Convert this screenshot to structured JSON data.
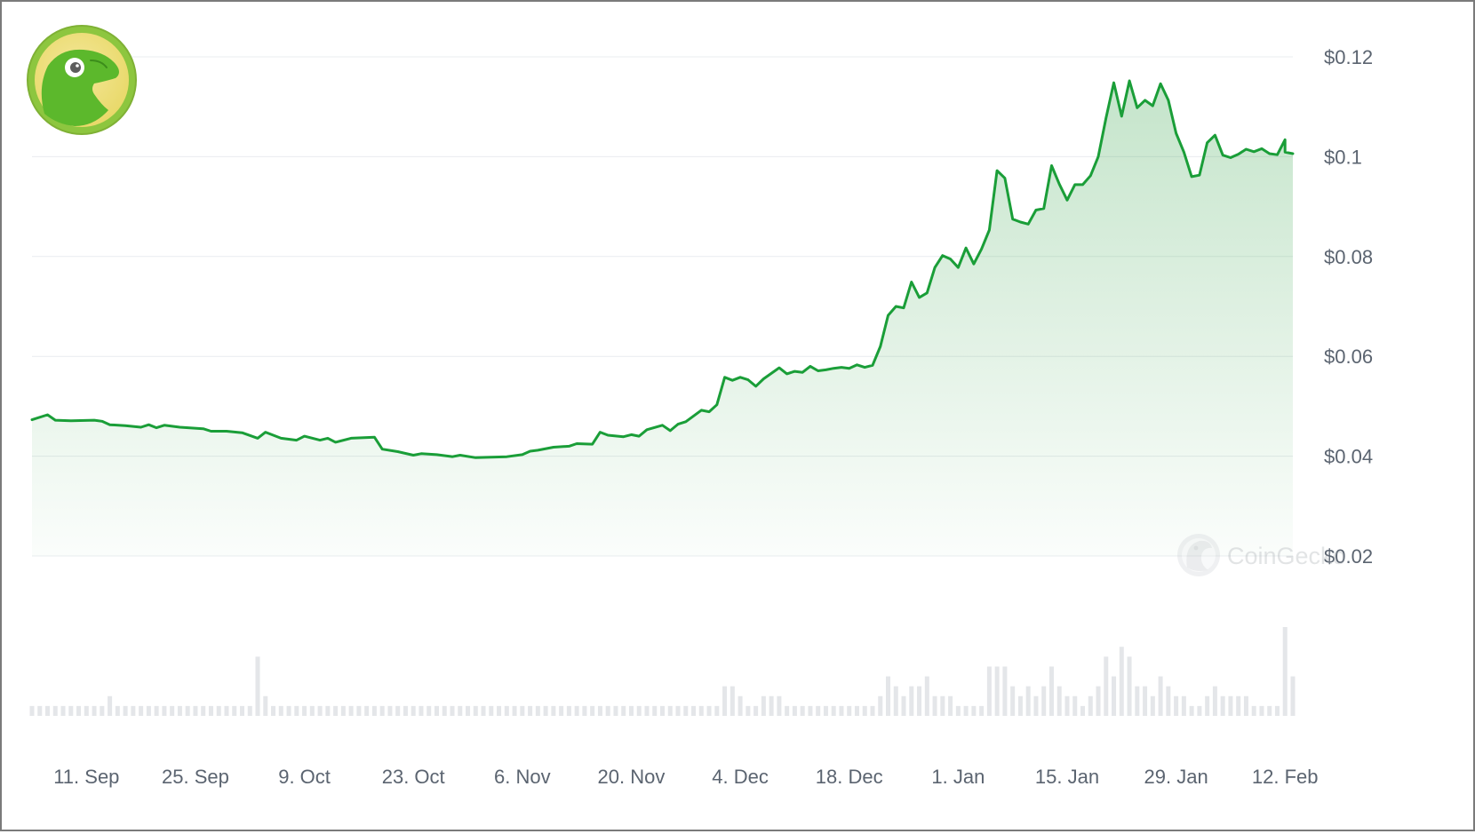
{
  "watermark": "CoinGecko",
  "colors": {
    "line": "#1a9e38",
    "fill": "#2ea043",
    "grid": "#e9ecef",
    "volume": "#e4e6e9",
    "axis_text": "#5b6470"
  },
  "icons": {
    "logo": "coingecko-gecko-logo",
    "watermark": "coingecko-watermark-icon"
  },
  "chart_data": {
    "type": "area",
    "x_ticks": [
      "11. Sep",
      "25. Sep",
      "9. Oct",
      "23. Oct",
      "6. Nov",
      "20. Nov",
      "4. Dec",
      "18. Dec",
      "1. Jan",
      "15. Jan",
      "29. Jan",
      "12. Feb"
    ],
    "y_ticks": [
      "$0.12",
      "$0.1",
      "$0.08",
      "$0.06",
      "$0.04",
      "$0.02"
    ],
    "ylim": [
      0.02,
      0.12
    ],
    "xlim": [
      "2023-09-04",
      "2024-02-13"
    ],
    "grid": true,
    "series": [
      {
        "values": [
          [
            "2023-09-04",
            0.0473
          ],
          [
            "2023-09-06",
            0.0483
          ],
          [
            "2023-09-07",
            0.0472
          ],
          [
            "2023-09-09",
            0.0471
          ],
          [
            "2023-09-12",
            0.0472
          ],
          [
            "2023-09-13",
            0.047
          ],
          [
            "2023-09-14",
            0.0463
          ],
          [
            "2023-09-16",
            0.0461
          ],
          [
            "2023-09-18",
            0.0458
          ],
          [
            "2023-09-19",
            0.0463
          ],
          [
            "2023-09-20",
            0.0457
          ],
          [
            "2023-09-21",
            0.0462
          ],
          [
            "2023-09-23",
            0.0458
          ],
          [
            "2023-09-26",
            0.0455
          ],
          [
            "2023-09-27",
            0.045
          ],
          [
            "2023-09-29",
            0.045
          ],
          [
            "2023-10-01",
            0.0447
          ],
          [
            "2023-10-03",
            0.0436
          ],
          [
            "2023-10-04",
            0.0448
          ],
          [
            "2023-10-06",
            0.0436
          ],
          [
            "2023-10-08",
            0.0432
          ],
          [
            "2023-10-09",
            0.044
          ],
          [
            "2023-10-11",
            0.0432
          ],
          [
            "2023-10-12",
            0.0436
          ],
          [
            "2023-10-13",
            0.0428
          ],
          [
            "2023-10-15",
            0.0436
          ],
          [
            "2023-10-18",
            0.0438
          ],
          [
            "2023-10-19",
            0.0414
          ],
          [
            "2023-10-21",
            0.0409
          ],
          [
            "2023-10-23",
            0.0402
          ],
          [
            "2023-10-24",
            0.0405
          ],
          [
            "2023-10-26",
            0.0403
          ],
          [
            "2023-10-28",
            0.0399
          ],
          [
            "2023-10-29",
            0.0402
          ],
          [
            "2023-10-31",
            0.0397
          ],
          [
            "2023-11-02",
            0.0398
          ],
          [
            "2023-11-04",
            0.0399
          ],
          [
            "2023-11-06",
            0.0403
          ],
          [
            "2023-11-07",
            0.041
          ],
          [
            "2023-11-08",
            0.0412
          ],
          [
            "2023-11-10",
            0.0418
          ],
          [
            "2023-11-12",
            0.042
          ],
          [
            "2023-11-13",
            0.0425
          ],
          [
            "2023-11-15",
            0.0424
          ],
          [
            "2023-11-16",
            0.0448
          ],
          [
            "2023-11-17",
            0.0442
          ],
          [
            "2023-11-19",
            0.0439
          ],
          [
            "2023-11-20",
            0.0443
          ],
          [
            "2023-11-21",
            0.044
          ],
          [
            "2023-11-22",
            0.0453
          ],
          [
            "2023-11-24",
            0.0462
          ],
          [
            "2023-11-25",
            0.0451
          ],
          [
            "2023-11-26",
            0.0464
          ],
          [
            "2023-11-27",
            0.0469
          ],
          [
            "2023-11-29",
            0.0492
          ],
          [
            "2023-11-30",
            0.0489
          ],
          [
            "2023-12-01",
            0.0503
          ],
          [
            "2023-12-02",
            0.0558
          ],
          [
            "2023-12-03",
            0.0552
          ],
          [
            "2023-12-04",
            0.0558
          ],
          [
            "2023-12-05",
            0.0553
          ],
          [
            "2023-12-06",
            0.054
          ],
          [
            "2023-12-07",
            0.0555
          ],
          [
            "2023-12-09",
            0.0577
          ],
          [
            "2023-12-10",
            0.0565
          ],
          [
            "2023-12-11",
            0.057
          ],
          [
            "2023-12-12",
            0.0568
          ],
          [
            "2023-12-13",
            0.058
          ],
          [
            "2023-12-14",
            0.0571
          ],
          [
            "2023-12-15",
            0.0573
          ],
          [
            "2023-12-16",
            0.0576
          ],
          [
            "2023-12-17",
            0.0578
          ],
          [
            "2023-12-18",
            0.0576
          ],
          [
            "2023-12-19",
            0.0583
          ],
          [
            "2023-12-20",
            0.0578
          ],
          [
            "2023-12-21",
            0.0582
          ],
          [
            "2023-12-22",
            0.062
          ],
          [
            "2023-12-23",
            0.0682
          ],
          [
            "2023-12-24",
            0.07
          ],
          [
            "2023-12-25",
            0.0697
          ],
          [
            "2023-12-26",
            0.0749
          ],
          [
            "2023-12-27",
            0.0718
          ],
          [
            "2023-12-28",
            0.0727
          ],
          [
            "2023-12-29",
            0.0778
          ],
          [
            "2023-12-30",
            0.0802
          ],
          [
            "2023-12-31",
            0.0795
          ],
          [
            "2024-01-01",
            0.0778
          ],
          [
            "2024-01-02",
            0.0817
          ],
          [
            "2024-01-03",
            0.0785
          ],
          [
            "2024-01-04",
            0.0815
          ],
          [
            "2024-01-05",
            0.0853
          ],
          [
            "2024-01-06",
            0.0972
          ],
          [
            "2024-01-07",
            0.0957
          ],
          [
            "2024-01-08",
            0.0875
          ],
          [
            "2024-01-09",
            0.0869
          ],
          [
            "2024-01-10",
            0.0865
          ],
          [
            "2024-01-11",
            0.0893
          ],
          [
            "2024-01-12",
            0.0896
          ],
          [
            "2024-01-13",
            0.0982
          ],
          [
            "2024-01-14",
            0.0945
          ],
          [
            "2024-01-15",
            0.0913
          ],
          [
            "2024-01-16",
            0.0944
          ],
          [
            "2024-01-17",
            0.0944
          ],
          [
            "2024-01-18",
            0.0962
          ],
          [
            "2024-01-19",
            0.1
          ],
          [
            "2024-01-20",
            0.1078
          ],
          [
            "2024-01-21",
            0.1148
          ],
          [
            "2024-01-22",
            0.1081
          ],
          [
            "2024-01-23",
            0.1152
          ],
          [
            "2024-01-24",
            0.1098
          ],
          [
            "2024-01-25",
            0.1113
          ],
          [
            "2024-01-26",
            0.1102
          ],
          [
            "2024-01-27",
            0.1146
          ],
          [
            "2024-01-28",
            0.1113
          ],
          [
            "2024-01-29",
            0.1047
          ],
          [
            "2024-01-30",
            0.1009
          ],
          [
            "2024-01-31",
            0.096
          ],
          [
            "2024-02-01",
            0.0963
          ],
          [
            "2024-02-02",
            0.1028
          ],
          [
            "2024-02-03",
            0.1043
          ],
          [
            "2024-02-04",
            0.1003
          ],
          [
            "2024-02-05",
            0.0998
          ],
          [
            "2024-02-06",
            0.1005
          ],
          [
            "2024-02-07",
            0.1015
          ],
          [
            "2024-02-08",
            0.101
          ],
          [
            "2024-02-09",
            0.1016
          ],
          [
            "2024-02-10",
            0.1006
          ],
          [
            "2024-02-11",
            0.1004
          ],
          [
            "2024-02-12",
            0.1034
          ],
          [
            "2024-02-12",
            0.1009
          ],
          [
            "2024-02-13",
            0.1006
          ]
        ]
      }
    ],
    "volume": [
      [
        "2023-09-04",
        1
      ],
      [
        "2023-09-05",
        1
      ],
      [
        "2023-09-06",
        1
      ],
      [
        "2023-09-07",
        1
      ],
      [
        "2023-09-08",
        1
      ],
      [
        "2023-09-09",
        1
      ],
      [
        "2023-09-10",
        1
      ],
      [
        "2023-09-11",
        1
      ],
      [
        "2023-09-12",
        1
      ],
      [
        "2023-09-13",
        1
      ],
      [
        "2023-09-14",
        2
      ],
      [
        "2023-09-15",
        1
      ],
      [
        "2023-09-16",
        1
      ],
      [
        "2023-09-17",
        1
      ],
      [
        "2023-09-18",
        1
      ],
      [
        "2023-09-19",
        1
      ],
      [
        "2023-09-20",
        1
      ],
      [
        "2023-09-21",
        1
      ],
      [
        "2023-09-22",
        1
      ],
      [
        "2023-09-23",
        1
      ],
      [
        "2023-09-24",
        1
      ],
      [
        "2023-09-25",
        1
      ],
      [
        "2023-09-26",
        1
      ],
      [
        "2023-09-27",
        1
      ],
      [
        "2023-09-28",
        1
      ],
      [
        "2023-09-29",
        1
      ],
      [
        "2023-09-30",
        1
      ],
      [
        "2023-10-01",
        1
      ],
      [
        "2023-10-02",
        1
      ],
      [
        "2023-10-03",
        6
      ],
      [
        "2023-10-04",
        2
      ],
      [
        "2023-10-05",
        1
      ],
      [
        "2023-10-06",
        1
      ],
      [
        "2023-10-07",
        1
      ],
      [
        "2023-10-08",
        1
      ],
      [
        "2023-10-09",
        1
      ],
      [
        "2023-10-10",
        1
      ],
      [
        "2023-10-11",
        1
      ],
      [
        "2023-10-12",
        1
      ],
      [
        "2023-10-13",
        1
      ],
      [
        "2023-10-14",
        1
      ],
      [
        "2023-10-15",
        1
      ],
      [
        "2023-10-16",
        1
      ],
      [
        "2023-10-17",
        1
      ],
      [
        "2023-10-18",
        1
      ],
      [
        "2023-10-19",
        1
      ],
      [
        "2023-10-20",
        1
      ],
      [
        "2023-10-21",
        1
      ],
      [
        "2023-10-22",
        1
      ],
      [
        "2023-10-23",
        1
      ],
      [
        "2023-10-24",
        1
      ],
      [
        "2023-10-25",
        1
      ],
      [
        "2023-10-26",
        1
      ],
      [
        "2023-10-27",
        1
      ],
      [
        "2023-10-28",
        1
      ],
      [
        "2023-10-29",
        1
      ],
      [
        "2023-10-30",
        1
      ],
      [
        "2023-10-31",
        1
      ],
      [
        "2023-11-01",
        1
      ],
      [
        "2023-11-02",
        1
      ],
      [
        "2023-11-03",
        1
      ],
      [
        "2023-11-04",
        1
      ],
      [
        "2023-11-05",
        1
      ],
      [
        "2023-11-06",
        1
      ],
      [
        "2023-11-07",
        1
      ],
      [
        "2023-11-08",
        1
      ],
      [
        "2023-11-09",
        1
      ],
      [
        "2023-11-10",
        1
      ],
      [
        "2023-11-11",
        1
      ],
      [
        "2023-11-12",
        1
      ],
      [
        "2023-11-13",
        1
      ],
      [
        "2023-11-14",
        1
      ],
      [
        "2023-11-15",
        1
      ],
      [
        "2023-11-16",
        1
      ],
      [
        "2023-11-17",
        1
      ],
      [
        "2023-11-18",
        1
      ],
      [
        "2023-11-19",
        1
      ],
      [
        "2023-11-20",
        1
      ],
      [
        "2023-11-21",
        1
      ],
      [
        "2023-11-22",
        1
      ],
      [
        "2023-11-23",
        1
      ],
      [
        "2023-11-24",
        1
      ],
      [
        "2023-11-25",
        1
      ],
      [
        "2023-11-26",
        1
      ],
      [
        "2023-11-27",
        1
      ],
      [
        "2023-11-28",
        1
      ],
      [
        "2023-11-29",
        1
      ],
      [
        "2023-11-30",
        1
      ],
      [
        "2023-12-01",
        1
      ],
      [
        "2023-12-02",
        3
      ],
      [
        "2023-12-03",
        3
      ],
      [
        "2023-12-04",
        2
      ],
      [
        "2023-12-05",
        1
      ],
      [
        "2023-12-06",
        1
      ],
      [
        "2023-12-07",
        2
      ],
      [
        "2023-12-08",
        2
      ],
      [
        "2023-12-09",
        2
      ],
      [
        "2023-12-10",
        1
      ],
      [
        "2023-12-11",
        1
      ],
      [
        "2023-12-12",
        1
      ],
      [
        "2023-12-13",
        1
      ],
      [
        "2023-12-14",
        1
      ],
      [
        "2023-12-15",
        1
      ],
      [
        "2023-12-16",
        1
      ],
      [
        "2023-12-17",
        1
      ],
      [
        "2023-12-18",
        1
      ],
      [
        "2023-12-19",
        1
      ],
      [
        "2023-12-20",
        1
      ],
      [
        "2023-12-21",
        1
      ],
      [
        "2023-12-22",
        2
      ],
      [
        "2023-12-23",
        4
      ],
      [
        "2023-12-24",
        3
      ],
      [
        "2023-12-25",
        2
      ],
      [
        "2023-12-26",
        3
      ],
      [
        "2023-12-27",
        3
      ],
      [
        "2023-12-28",
        4
      ],
      [
        "2023-12-29",
        2
      ],
      [
        "2023-12-30",
        2
      ],
      [
        "2023-12-31",
        2
      ],
      [
        "2024-01-01",
        1
      ],
      [
        "2024-01-02",
        1
      ],
      [
        "2024-01-03",
        1
      ],
      [
        "2024-01-04",
        1
      ],
      [
        "2024-01-05",
        5
      ],
      [
        "2024-01-06",
        5
      ],
      [
        "2024-01-07",
        5
      ],
      [
        "2024-01-08",
        3
      ],
      [
        "2024-01-09",
        2
      ],
      [
        "2024-01-10",
        3
      ],
      [
        "2024-01-11",
        2
      ],
      [
        "2024-01-12",
        3
      ],
      [
        "2024-01-13",
        5
      ],
      [
        "2024-01-14",
        3
      ],
      [
        "2024-01-15",
        2
      ],
      [
        "2024-01-16",
        2
      ],
      [
        "2024-01-17",
        1
      ],
      [
        "2024-01-18",
        2
      ],
      [
        "2024-01-19",
        3
      ],
      [
        "2024-01-20",
        6
      ],
      [
        "2024-01-21",
        4
      ],
      [
        "2024-01-22",
        7
      ],
      [
        "2024-01-23",
        6
      ],
      [
        "2024-01-24",
        3
      ],
      [
        "2024-01-25",
        3
      ],
      [
        "2024-01-26",
        2
      ],
      [
        "2024-01-27",
        4
      ],
      [
        "2024-01-28",
        3
      ],
      [
        "2024-01-29",
        2
      ],
      [
        "2024-01-30",
        2
      ],
      [
        "2024-01-31",
        1
      ],
      [
        "2024-02-01",
        1
      ],
      [
        "2024-02-02",
        2
      ],
      [
        "2024-02-03",
        3
      ],
      [
        "2024-02-04",
        2
      ],
      [
        "2024-02-05",
        2
      ],
      [
        "2024-02-06",
        2
      ],
      [
        "2024-02-07",
        2
      ],
      [
        "2024-02-08",
        1
      ],
      [
        "2024-02-09",
        1
      ],
      [
        "2024-02-10",
        1
      ],
      [
        "2024-02-11",
        1
      ],
      [
        "2024-02-12",
        9
      ],
      [
        "2024-02-13",
        4
      ]
    ]
  }
}
